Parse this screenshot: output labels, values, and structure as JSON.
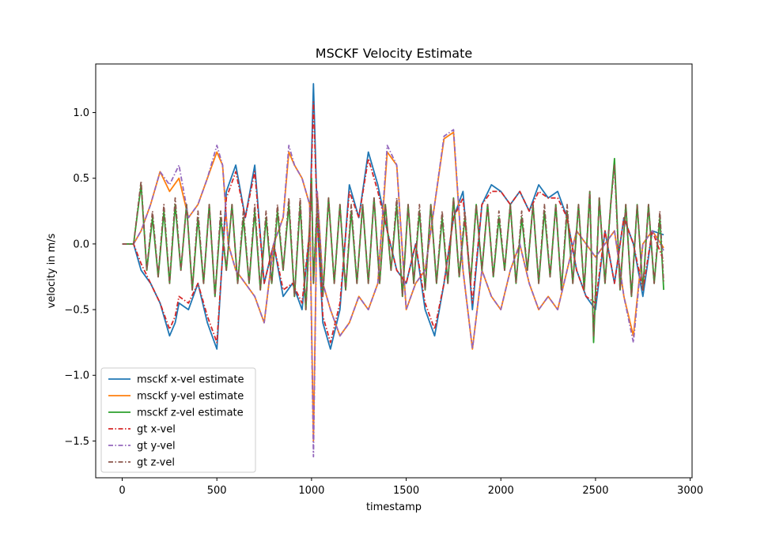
{
  "chart_data": {
    "type": "line",
    "title": "MSCKF Velocity Estimate",
    "xlabel": "timestamp",
    "ylabel": "velocity in m/s",
    "xlim": [
      -140,
      3010
    ],
    "ylim": [
      -1.78,
      1.37
    ],
    "xticks": [
      0,
      500,
      1000,
      1500,
      2000,
      2500,
      3000
    ],
    "xtick_labels": [
      "0",
      "500",
      "1000",
      "1500",
      "2000",
      "2500",
      "3000"
    ],
    "yticks": [
      -1.5,
      -1.0,
      -0.5,
      0.0,
      0.5,
      1.0
    ],
    "ytick_labels": [
      "−1.5",
      "−1.0",
      "−0.5",
      "0.0",
      "0.5",
      "1.0"
    ],
    "grid": false,
    "legend_position": "lower-left",
    "series": [
      {
        "name": "msckf x-vel estimate",
        "color": "#1f77b4",
        "style": "solid",
        "x": [
          0,
          60,
          100,
          150,
          200,
          250,
          280,
          300,
          350,
          400,
          450,
          500,
          550,
          600,
          650,
          700,
          750,
          800,
          850,
          900,
          950,
          990,
          1010,
          1030,
          1060,
          1100,
          1150,
          1200,
          1250,
          1300,
          1350,
          1400,
          1450,
          1500,
          1550,
          1600,
          1650,
          1700,
          1750,
          1800,
          1850,
          1900,
          1950,
          2000,
          2050,
          2100,
          2150,
          2200,
          2250,
          2300,
          2350,
          2400,
          2450,
          2500,
          2550,
          2600,
          2650,
          2700,
          2750,
          2800,
          2860
        ],
        "values": [
          0.0,
          0.0,
          -0.2,
          -0.3,
          -0.45,
          -0.7,
          -0.6,
          -0.45,
          -0.5,
          -0.3,
          -0.6,
          -0.8,
          0.4,
          0.6,
          0.2,
          0.6,
          -0.3,
          0.0,
          -0.4,
          -0.3,
          -0.5,
          0.1,
          1.22,
          0.2,
          -0.6,
          -0.8,
          -0.5,
          0.45,
          0.2,
          0.7,
          0.45,
          0.1,
          -0.2,
          -0.3,
          0.0,
          -0.5,
          -0.7,
          -0.3,
          0.2,
          0.4,
          -0.5,
          0.3,
          0.45,
          0.4,
          0.3,
          0.4,
          0.25,
          0.45,
          0.35,
          0.4,
          0.2,
          -0.2,
          -0.4,
          -0.5,
          0.1,
          -0.3,
          0.2,
          0.0,
          -0.4,
          0.1,
          0.07
        ]
      },
      {
        "name": "msckf y-vel estimate",
        "color": "#ff7f0e",
        "style": "solid",
        "x": [
          0,
          60,
          100,
          150,
          200,
          250,
          300,
          350,
          400,
          450,
          500,
          530,
          560,
          600,
          650,
          700,
          750,
          800,
          850,
          880,
          910,
          950,
          990,
          1010,
          1030,
          1060,
          1100,
          1150,
          1200,
          1250,
          1300,
          1350,
          1400,
          1450,
          1500,
          1550,
          1600,
          1650,
          1700,
          1750,
          1800,
          1850,
          1900,
          1950,
          2000,
          2050,
          2100,
          2150,
          2200,
          2250,
          2300,
          2350,
          2400,
          2450,
          2500,
          2550,
          2600,
          2650,
          2700,
          2750,
          2800,
          2860
        ],
        "values": [
          0.0,
          0.0,
          0.1,
          0.3,
          0.55,
          0.4,
          0.5,
          0.2,
          0.3,
          0.5,
          0.7,
          0.6,
          0.0,
          -0.2,
          -0.3,
          -0.4,
          -0.6,
          0.0,
          0.2,
          0.7,
          0.6,
          0.5,
          0.3,
          -1.5,
          0.4,
          -0.3,
          -0.5,
          -0.7,
          -0.6,
          -0.4,
          -0.5,
          -0.3,
          0.7,
          0.6,
          -0.5,
          -0.3,
          -0.2,
          0.3,
          0.8,
          0.85,
          -0.2,
          -0.8,
          -0.2,
          -0.4,
          -0.5,
          -0.2,
          0.0,
          -0.3,
          -0.5,
          -0.4,
          -0.5,
          -0.2,
          0.1,
          0.0,
          -0.1,
          0.0,
          0.1,
          -0.4,
          -0.7,
          0.0,
          0.1,
          -0.03
        ]
      },
      {
        "name": "msckf z-vel estimate",
        "color": "#2ca02c",
        "style": "solid",
        "x": [
          0,
          60,
          100,
          130,
          160,
          190,
          220,
          250,
          280,
          310,
          340,
          370,
          400,
          430,
          460,
          490,
          520,
          550,
          580,
          610,
          640,
          670,
          700,
          730,
          760,
          790,
          820,
          850,
          880,
          910,
          940,
          970,
          1000,
          1010,
          1030,
          1060,
          1090,
          1120,
          1150,
          1180,
          1210,
          1240,
          1270,
          1300,
          1330,
          1360,
          1390,
          1420,
          1450,
          1480,
          1510,
          1540,
          1570,
          1600,
          1630,
          1660,
          1690,
          1720,
          1750,
          1780,
          1810,
          1840,
          1870,
          1900,
          1930,
          1960,
          1990,
          2020,
          2050,
          2080,
          2110,
          2140,
          2170,
          2200,
          2230,
          2260,
          2290,
          2320,
          2350,
          2380,
          2410,
          2440,
          2470,
          2490,
          2520,
          2550,
          2580,
          2600,
          2630,
          2660,
          2690,
          2720,
          2750,
          2780,
          2810,
          2840,
          2860
        ],
        "values": [
          0.0,
          0.0,
          0.45,
          -0.2,
          0.2,
          -0.25,
          0.25,
          -0.3,
          0.3,
          -0.2,
          0.3,
          -0.35,
          0.2,
          -0.3,
          0.3,
          -0.4,
          0.2,
          -0.2,
          0.3,
          -0.3,
          0.2,
          -0.3,
          0.25,
          -0.35,
          0.2,
          -0.3,
          0.25,
          -0.2,
          0.3,
          -0.4,
          0.3,
          -0.5,
          0.5,
          -0.3,
          0.3,
          -0.4,
          0.35,
          -0.3,
          0.3,
          -0.35,
          0.25,
          -0.3,
          0.3,
          -0.3,
          0.35,
          -0.3,
          0.3,
          -0.2,
          0.3,
          -0.4,
          0.3,
          -0.3,
          0.25,
          -0.35,
          0.3,
          -0.3,
          0.2,
          -0.3,
          0.35,
          -0.25,
          0.2,
          -0.3,
          0.3,
          -0.2,
          0.3,
          -0.25,
          0.2,
          -0.2,
          0.3,
          -0.3,
          0.2,
          -0.2,
          0.3,
          -0.3,
          0.25,
          -0.25,
          0.3,
          -0.35,
          0.25,
          -0.3,
          0.3,
          -0.35,
          0.4,
          -0.75,
          0.35,
          -0.3,
          0.3,
          0.65,
          -0.35,
          0.3,
          -0.4,
          0.3,
          -0.35,
          0.3,
          -0.3,
          0.2,
          -0.35
        ]
      },
      {
        "name": "gt x-vel",
        "color": "#d62728",
        "style": "dashdot",
        "x": [
          0,
          60,
          100,
          150,
          200,
          250,
          280,
          300,
          350,
          400,
          450,
          500,
          550,
          600,
          650,
          700,
          750,
          800,
          850,
          900,
          950,
          990,
          1010,
          1030,
          1060,
          1100,
          1150,
          1200,
          1250,
          1300,
          1350,
          1400,
          1450,
          1500,
          1550,
          1600,
          1650,
          1700,
          1750,
          1800,
          1850,
          1900,
          1950,
          2000,
          2050,
          2100,
          2150,
          2200,
          2250,
          2300,
          2350,
          2400,
          2450,
          2500,
          2550,
          2600,
          2650,
          2700,
          2750,
          2800,
          2860
        ],
        "values": [
          0.0,
          0.0,
          -0.15,
          -0.3,
          -0.45,
          -0.65,
          -0.55,
          -0.4,
          -0.45,
          -0.3,
          -0.55,
          -0.75,
          0.35,
          0.55,
          0.2,
          0.55,
          -0.3,
          0.0,
          -0.35,
          -0.3,
          -0.45,
          0.1,
          1.08,
          0.2,
          -0.55,
          -0.75,
          -0.45,
          0.4,
          0.2,
          0.65,
          0.4,
          0.1,
          -0.2,
          -0.3,
          0.0,
          -0.45,
          -0.65,
          -0.3,
          0.2,
          0.35,
          -0.45,
          0.3,
          0.4,
          0.4,
          0.3,
          0.4,
          0.25,
          0.4,
          0.35,
          0.35,
          0.2,
          -0.2,
          -0.4,
          -0.45,
          0.1,
          -0.3,
          0.2,
          0.0,
          -0.35,
          0.1,
          -0.13
        ]
      },
      {
        "name": "gt y-vel",
        "color": "#9467bd",
        "style": "dashdot",
        "x": [
          0,
          60,
          100,
          150,
          200,
          250,
          300,
          350,
          400,
          450,
          500,
          530,
          560,
          600,
          650,
          700,
          750,
          800,
          850,
          880,
          910,
          950,
          990,
          1010,
          1030,
          1060,
          1100,
          1150,
          1200,
          1250,
          1300,
          1350,
          1400,
          1450,
          1500,
          1550,
          1600,
          1650,
          1700,
          1750,
          1800,
          1850,
          1900,
          1950,
          2000,
          2050,
          2100,
          2150,
          2200,
          2250,
          2300,
          2350,
          2400,
          2450,
          2500,
          2550,
          2600,
          2650,
          2700,
          2750,
          2800,
          2860
        ],
        "values": [
          0.0,
          0.0,
          0.1,
          0.3,
          0.55,
          0.45,
          0.6,
          0.2,
          0.3,
          0.5,
          0.75,
          0.6,
          0.0,
          -0.2,
          -0.3,
          -0.4,
          -0.6,
          0.0,
          0.2,
          0.75,
          0.6,
          0.5,
          0.3,
          -1.62,
          0.4,
          -0.3,
          -0.5,
          -0.7,
          -0.6,
          -0.4,
          -0.5,
          -0.3,
          0.75,
          0.6,
          -0.5,
          -0.3,
          -0.2,
          0.3,
          0.82,
          0.87,
          -0.2,
          -0.8,
          -0.2,
          -0.4,
          -0.5,
          -0.2,
          0.0,
          -0.3,
          -0.5,
          -0.4,
          -0.5,
          -0.2,
          0.1,
          0.0,
          -0.1,
          0.0,
          0.1,
          -0.4,
          -0.75,
          0.0,
          0.1,
          -0.05
        ]
      },
      {
        "name": "gt z-vel",
        "color": "#8c564b",
        "style": "dashdot",
        "x": [
          0,
          60,
          100,
          130,
          160,
          190,
          220,
          250,
          280,
          310,
          340,
          370,
          400,
          430,
          460,
          490,
          520,
          550,
          580,
          610,
          640,
          670,
          700,
          730,
          760,
          790,
          820,
          850,
          880,
          910,
          940,
          970,
          1000,
          1010,
          1030,
          1060,
          1090,
          1120,
          1150,
          1180,
          1210,
          1240,
          1270,
          1300,
          1330,
          1360,
          1390,
          1420,
          1450,
          1480,
          1510,
          1540,
          1570,
          1600,
          1630,
          1660,
          1690,
          1720,
          1750,
          1780,
          1810,
          1840,
          1870,
          1900,
          1930,
          1960,
          1990,
          2020,
          2050,
          2080,
          2110,
          2140,
          2170,
          2200,
          2230,
          2260,
          2290,
          2320,
          2350,
          2380,
          2410,
          2440,
          2470,
          2490,
          2520,
          2550,
          2580,
          2600,
          2630,
          2660,
          2690,
          2720,
          2750,
          2780,
          2810,
          2840,
          2860
        ],
        "values": [
          0.0,
          0.0,
          0.48,
          -0.2,
          0.25,
          -0.25,
          0.3,
          -0.3,
          0.35,
          -0.2,
          0.3,
          -0.35,
          0.25,
          -0.3,
          0.3,
          -0.4,
          0.25,
          -0.2,
          0.3,
          -0.3,
          0.25,
          -0.3,
          0.3,
          -0.35,
          0.25,
          -0.3,
          0.3,
          -0.2,
          0.35,
          -0.4,
          0.35,
          -0.5,
          0.45,
          -0.3,
          0.35,
          -0.4,
          0.35,
          -0.3,
          0.3,
          -0.35,
          0.3,
          -0.3,
          0.3,
          -0.3,
          0.35,
          -0.3,
          0.3,
          -0.2,
          0.35,
          -0.4,
          0.3,
          -0.3,
          0.3,
          -0.35,
          0.3,
          -0.3,
          0.25,
          -0.3,
          0.35,
          -0.25,
          0.25,
          -0.3,
          0.3,
          -0.2,
          0.3,
          -0.25,
          0.25,
          -0.2,
          0.3,
          -0.3,
          0.25,
          -0.2,
          0.3,
          -0.3,
          0.3,
          -0.25,
          0.3,
          -0.35,
          0.3,
          -0.3,
          0.3,
          -0.35,
          0.4,
          -0.7,
          0.35,
          -0.3,
          0.3,
          0.6,
          -0.35,
          0.3,
          -0.4,
          0.3,
          -0.35,
          0.3,
          -0.3,
          0.25,
          -0.3
        ]
      }
    ]
  }
}
